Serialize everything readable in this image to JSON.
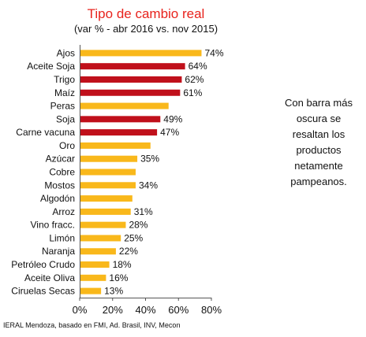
{
  "chart_data": {
    "type": "bar",
    "orientation": "horizontal",
    "title": "Tipo de cambio real",
    "subtitle": "(var % - abr 2016 vs. nov 2015)",
    "categories": [
      "Ajos",
      "Aceite Soja",
      "Trigo",
      "Maíz",
      "Peras",
      "Soja",
      "Carne vacuna",
      "Oro",
      "Azúcar",
      "Cobre",
      "Mostos",
      "Algodón",
      "Arroz",
      "Vino fracc.",
      "Limón",
      "Naranja",
      "Petróleo Crudo",
      "Aceite Oliva",
      "Ciruelas Secas"
    ],
    "values": [
      74,
      64,
      62,
      61,
      54,
      49,
      47,
      43,
      35,
      34,
      34,
      32,
      31,
      28,
      25,
      22,
      18,
      16,
      13
    ],
    "value_labels": [
      "74%",
      "64%",
      "62%",
      "61%",
      "",
      "49%",
      "47%",
      "",
      "35%",
      "",
      "34%",
      "",
      "31%",
      "28%",
      "25%",
      "22%",
      "18%",
      "16%",
      "13%"
    ],
    "highlighted": [
      false,
      true,
      true,
      true,
      false,
      true,
      true,
      false,
      false,
      false,
      false,
      false,
      false,
      false,
      false,
      false,
      false,
      false,
      false
    ],
    "colors": {
      "normal": "#f9b81b",
      "highlight": "#c0101b"
    },
    "xlim": [
      0,
      80
    ],
    "xticks": [
      0,
      20,
      40,
      60,
      80
    ],
    "xtick_labels": [
      "0%",
      "20%",
      "40%",
      "60%",
      "80%"
    ],
    "xlabel": "",
    "ylabel": "",
    "grid": false
  },
  "side_note": "Con barra más oscura se resaltan los productos netamente pampeanos.",
  "source": "IERAL Mendoza, basado en FMI, Ad. Brasil, INV, Mecon"
}
